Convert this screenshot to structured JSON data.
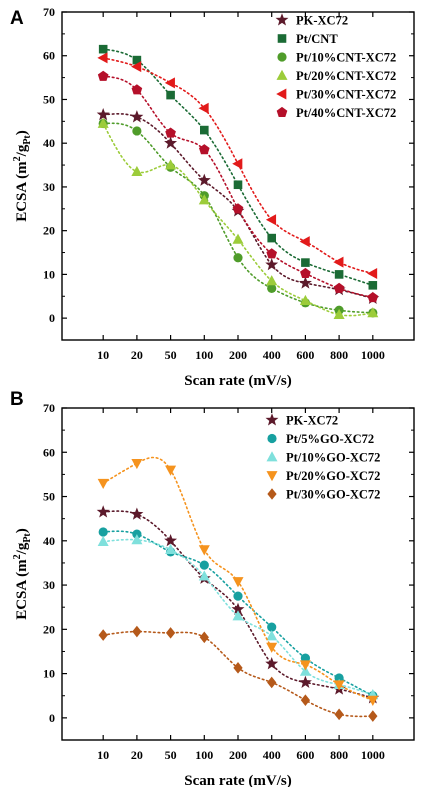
{
  "chart_data": [
    {
      "type": "scatter",
      "panel_label": "A",
      "xlabel": "Scan rate (mV/s)",
      "ylabel": "ECSA (m²/g_Pt)",
      "ylabel_main": "ECSA (m",
      "ylabel_sup": "2",
      "ylabel_mid": "/g",
      "ylabel_sub": "Pt",
      "ylabel_end": ")",
      "categories": [
        "10",
        "20",
        "50",
        "100",
        "200",
        "400",
        "600",
        "800",
        "1000"
      ],
      "ylim": [
        -5,
        70
      ],
      "yticks": [
        0,
        10,
        20,
        30,
        40,
        50,
        60,
        70
      ],
      "grid": false,
      "legend": "top-right",
      "series": [
        {
          "name": "PK-XC72",
          "marker": "star",
          "color": "#5c1a2b",
          "values": [
            46.5,
            46,
            40,
            31.5,
            24.5,
            12.2,
            8,
            6.5,
            4.5
          ]
        },
        {
          "name": "Pt/CNT",
          "marker": "square",
          "color": "#1b6b35",
          "values": [
            61.5,
            59,
            51,
            43,
            30.5,
            18.3,
            12.7,
            10,
            7.5
          ]
        },
        {
          "name": "Pt/10%CNT-XC72",
          "marker": "circle",
          "color": "#4f9c2a",
          "values": [
            44.5,
            42.8,
            34.5,
            28,
            13.8,
            6.8,
            3.5,
            1.8,
            1.2
          ]
        },
        {
          "name": "Pt/20%CNT-XC72",
          "marker": "triangle-up",
          "color": "#9ccc3a",
          "values": [
            44.5,
            33.5,
            35,
            27,
            18,
            8.5,
            4,
            0.8,
            1.2
          ]
        },
        {
          "name": "Pt/30%CNT-XC72",
          "marker": "triangle-left",
          "color": "#e21a1a",
          "values": [
            59.5,
            57.5,
            53.8,
            48,
            35.3,
            22.5,
            17.5,
            12.8,
            10.2
          ]
        },
        {
          "name": "Pt/40%CNT-XC72",
          "marker": "pentagon",
          "color": "#b5102a",
          "values": [
            55.3,
            52.2,
            42.3,
            38.5,
            25,
            14.7,
            10.2,
            6.8,
            4.7
          ]
        }
      ]
    },
    {
      "type": "scatter",
      "panel_label": "B",
      "xlabel": "Scan rate (mV/s)",
      "ylabel": "ECSA (m²/g_Pt)",
      "ylabel_main": "ECSA (m",
      "ylabel_sup": "2",
      "ylabel_mid": "/g",
      "ylabel_sub": "Pt",
      "ylabel_end": ")",
      "categories": [
        "10",
        "20",
        "50",
        "100",
        "200",
        "400",
        "600",
        "800",
        "1000"
      ],
      "ylim": [
        -5,
        70
      ],
      "yticks": [
        0,
        10,
        20,
        30,
        40,
        50,
        60,
        70
      ],
      "grid": false,
      "legend": "top-right",
      "series": [
        {
          "name": "PK-XC72",
          "marker": "star",
          "color": "#5c1a2b",
          "values": [
            46.5,
            46,
            40,
            31.5,
            24.5,
            12.2,
            8,
            6.5,
            4.5
          ]
        },
        {
          "name": "Pt/5%GO-XC72",
          "marker": "circle",
          "color": "#17a0a0",
          "values": [
            42,
            41.5,
            37.5,
            34.5,
            27.5,
            20.5,
            13.5,
            9,
            5
          ]
        },
        {
          "name": "Pt/10%GO-XC72",
          "marker": "triangle-up",
          "color": "#7fe0dc",
          "values": [
            39.8,
            40.2,
            38,
            32,
            23,
            18.5,
            10.5,
            7.5,
            5.2
          ]
        },
        {
          "name": "Pt/20%GO-XC72",
          "marker": "triangle-down",
          "color": "#f5931e",
          "values": [
            53,
            57.5,
            56,
            38,
            30.8,
            16,
            12,
            7.5,
            4
          ]
        },
        {
          "name": "Pt/30%GO-XC72",
          "marker": "diamond",
          "color": "#b5591a",
          "values": [
            18.7,
            19.5,
            19.2,
            18.2,
            11.3,
            8,
            4,
            0.8,
            0.4
          ]
        }
      ]
    }
  ]
}
